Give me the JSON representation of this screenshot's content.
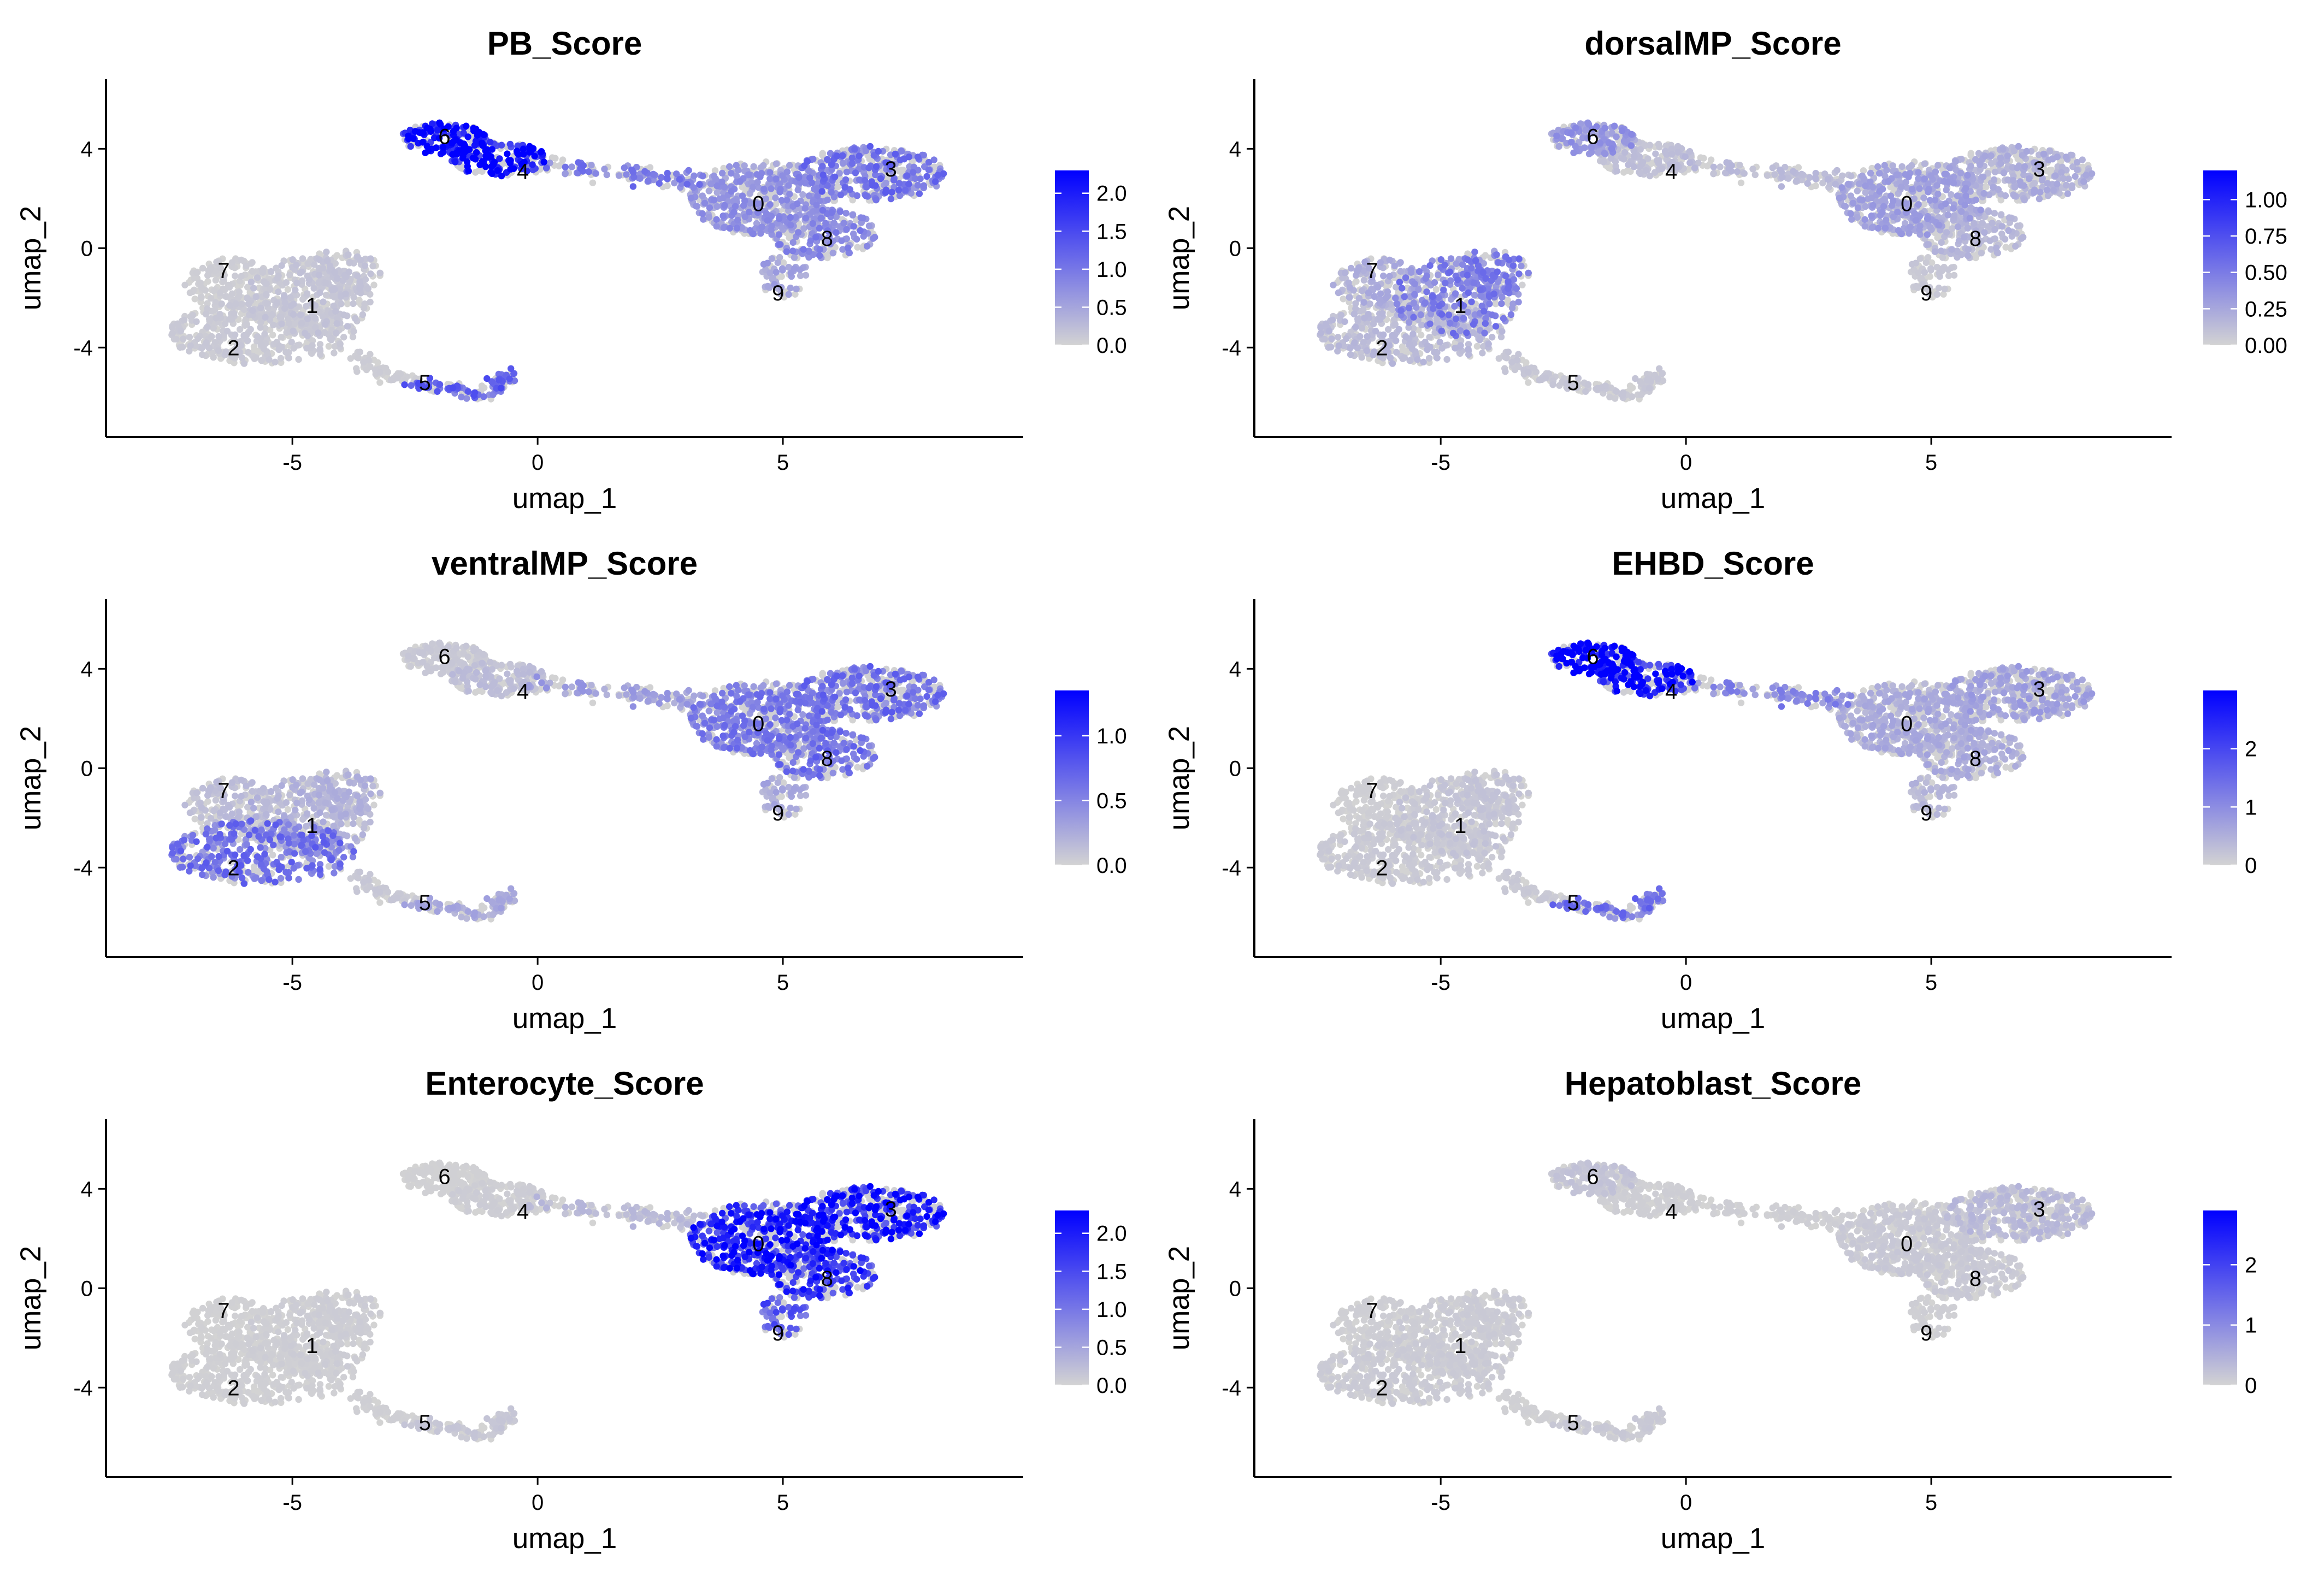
{
  "chart_data": [
    {
      "type": "scatter",
      "title": "PB_Score",
      "xlabel": "umap_1",
      "ylabel": "umap_2",
      "xlim": [
        -8.8,
        9.9
      ],
      "ylim": [
        -7.6,
        6.8
      ],
      "xticks": [
        -5,
        0,
        5
      ],
      "yticks": [
        -4,
        0,
        4
      ],
      "xtick_labels": [
        "-5",
        "0",
        "5"
      ],
      "ytick_labels": [
        "-4",
        "0",
        "4"
      ],
      "color_scale": {
        "low": "#d3d3d3",
        "high": "#0000ff",
        "max": 2.3,
        "ticks": [
          0.0,
          0.5,
          1.0,
          1.5,
          2.0
        ],
        "tick_labels": [
          "0.0",
          "0.5",
          "1.0",
          "1.5",
          "2.0"
        ]
      },
      "cluster_scores": {
        "0": 0.5,
        "1": 0.12,
        "2": 0.08,
        "3": 0.75,
        "4": 1.7,
        "5": 0.9,
        "6": 1.6,
        "7": 0.05,
        "8": 0.6,
        "9": 0.4,
        "bridge": 0.7,
        "arm": 0.05
      }
    },
    {
      "type": "scatter",
      "title": "dorsalMP_Score",
      "xlabel": "umap_1",
      "ylabel": "umap_2",
      "xlim": [
        -8.8,
        9.9
      ],
      "ylim": [
        -7.6,
        6.8
      ],
      "xticks": [
        -5,
        0,
        5
      ],
      "yticks": [
        -4,
        0,
        4
      ],
      "xtick_labels": [
        "-5",
        "0",
        "5"
      ],
      "ytick_labels": [
        "-4",
        "0",
        "4"
      ],
      "color_scale": {
        "low": "#d3d3d3",
        "high": "#0000ff",
        "max": 1.2,
        "ticks": [
          0.0,
          0.25,
          0.5,
          0.75,
          1.0
        ],
        "tick_labels": [
          "0.00",
          "0.25",
          "0.50",
          "0.75",
          "1.00"
        ]
      },
      "cluster_scores": {
        "0": 0.2,
        "1": 0.35,
        "2": 0.1,
        "3": 0.15,
        "4": 0.08,
        "5": 0.05,
        "6": 0.25,
        "7": 0.15,
        "8": 0.12,
        "9": 0.05,
        "bridge": 0.1,
        "arm": 0.05
      }
    },
    {
      "type": "scatter",
      "title": "ventralMP_Score",
      "xlabel": "umap_1",
      "ylabel": "umap_2",
      "xlim": [
        -8.8,
        9.9
      ],
      "ylim": [
        -7.6,
        6.8
      ],
      "xticks": [
        -5,
        0,
        5
      ],
      "yticks": [
        -4,
        0,
        4
      ],
      "xtick_labels": [
        "-5",
        "0",
        "5"
      ],
      "ytick_labels": [
        "-4",
        "0",
        "4"
      ],
      "color_scale": {
        "low": "#d3d3d3",
        "high": "#0000ff",
        "max": 1.35,
        "ticks": [
          0.0,
          0.5,
          1.0
        ],
        "tick_labels": [
          "0.0",
          "0.5",
          "1.0"
        ]
      },
      "cluster_scores": {
        "0": 0.4,
        "1": 0.15,
        "2": 0.45,
        "3": 0.45,
        "4": 0.1,
        "5": 0.2,
        "6": 0.05,
        "7": 0.1,
        "8": 0.45,
        "9": 0.2,
        "bridge": 0.25,
        "arm": 0.05
      }
    },
    {
      "type": "scatter",
      "title": "EHBD_Score",
      "xlabel": "umap_1",
      "ylabel": "umap_2",
      "xlim": [
        -8.8,
        9.9
      ],
      "ylim": [
        -7.6,
        6.8
      ],
      "xticks": [
        -5,
        0,
        5
      ],
      "yticks": [
        -4,
        0,
        4
      ],
      "xtick_labels": [
        "-5",
        "0",
        "5"
      ],
      "ytick_labels": [
        "-4",
        "0",
        "4"
      ],
      "color_scale": {
        "low": "#d3d3d3",
        "high": "#0000ff",
        "max": 3.0,
        "ticks": [
          0,
          1,
          2
        ],
        "tick_labels": [
          "0",
          "1",
          "2"
        ]
      },
      "cluster_scores": {
        "0": 0.4,
        "1": 0.15,
        "2": 0.1,
        "3": 0.5,
        "4": 2.0,
        "5": 1.0,
        "6": 2.4,
        "7": 0.05,
        "8": 0.4,
        "9": 0.3,
        "bridge": 0.8,
        "arm": 0.1
      }
    },
    {
      "type": "scatter",
      "title": "Enterocyte_Score",
      "xlabel": "umap_1",
      "ylabel": "umap_2",
      "xlim": [
        -8.8,
        9.9
      ],
      "ylim": [
        -7.6,
        6.8
      ],
      "xticks": [
        -5,
        0,
        5
      ],
      "yticks": [
        -4,
        0,
        4
      ],
      "xtick_labels": [
        "-5",
        "0",
        "5"
      ],
      "ytick_labels": [
        "-4",
        "0",
        "4"
      ],
      "color_scale": {
        "low": "#d3d3d3",
        "high": "#0000ff",
        "max": 2.3,
        "ticks": [
          0.0,
          0.5,
          1.0,
          1.5,
          2.0
        ],
        "tick_labels": [
          "0.0",
          "0.5",
          "1.0",
          "1.5",
          "2.0"
        ]
      },
      "cluster_scores": {
        "0": 1.4,
        "1": 0.05,
        "2": 0.03,
        "3": 1.5,
        "4": 0.05,
        "5": 0.1,
        "6": 0.02,
        "7": 0.02,
        "8": 1.3,
        "9": 1.0,
        "bridge": 0.2,
        "arm": 0.03
      }
    },
    {
      "type": "scatter",
      "title": "Hepatoblast_Score",
      "xlabel": "umap_1",
      "ylabel": "umap_2",
      "xlim": [
        -8.8,
        9.9
      ],
      "ylim": [
        -7.6,
        6.8
      ],
      "xticks": [
        -5,
        0,
        5
      ],
      "yticks": [
        -4,
        0,
        4
      ],
      "xtick_labels": [
        "-5",
        "0",
        "5"
      ],
      "ytick_labels": [
        "-4",
        "0",
        "4"
      ],
      "color_scale": {
        "low": "#d3d3d3",
        "high": "#0000ff",
        "max": 2.9,
        "ticks": [
          0,
          1,
          2
        ],
        "tick_labels": [
          "0",
          "1",
          "2"
        ]
      },
      "cluster_scores": {
        "0": 0.1,
        "1": 0.08,
        "2": 0.08,
        "3": 0.25,
        "4": 0.05,
        "5": 0.1,
        "6": 0.15,
        "7": 0.05,
        "8": 0.1,
        "9": 0.05,
        "bridge": 0.05,
        "arm": 0.03
      }
    }
  ],
  "clusters": [
    {
      "id": "0",
      "x": 4.5,
      "y": 1.8
    },
    {
      "id": "1",
      "x": -4.6,
      "y": -2.3
    },
    {
      "id": "2",
      "x": -6.2,
      "y": -4.0
    },
    {
      "id": "3",
      "x": 7.2,
      "y": 3.2
    },
    {
      "id": "4",
      "x": -0.3,
      "y": 3.1
    },
    {
      "id": "5",
      "x": -2.3,
      "y": -5.4
    },
    {
      "id": "6",
      "x": -1.9,
      "y": 4.5
    },
    {
      "id": "7",
      "x": -6.4,
      "y": -0.9
    },
    {
      "id": "8",
      "x": 5.9,
      "y": 0.4
    },
    {
      "id": "9",
      "x": 4.9,
      "y": -1.8
    }
  ]
}
